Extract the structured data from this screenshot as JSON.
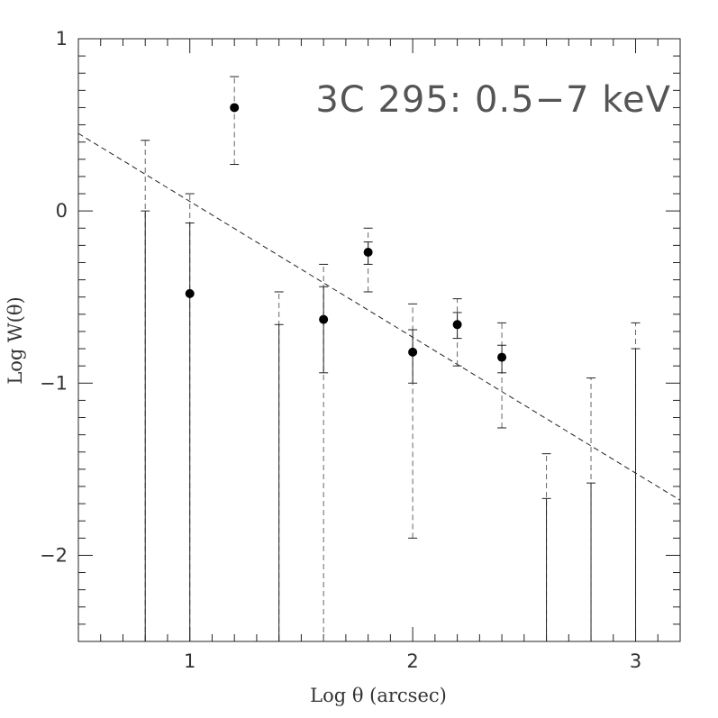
{
  "chart_data": {
    "type": "scatter",
    "annotation": "3C 295: 0.5−7 keV",
    "xlabel": "Log θ (arcsec)",
    "ylabel": "Log W(θ)",
    "xlim": [
      0.5,
      3.2
    ],
    "ylim": [
      -2.5,
      1.0
    ],
    "xticks": [
      1,
      2,
      3
    ],
    "xtick_labels": [
      "1",
      "2",
      "3"
    ],
    "yticks": [
      -2,
      -1,
      0,
      1
    ],
    "ytick_labels": [
      "−2",
      "−1",
      "0",
      "1"
    ],
    "fit_line": {
      "x": [
        0.5,
        3.2
      ],
      "y": [
        0.45,
        -1.68
      ]
    },
    "points": [
      {
        "x": 1.0,
        "y": -0.48,
        "solid_err": [
          -2.5,
          -0.07
        ],
        "dashed_err": [
          null,
          0.1
        ]
      },
      {
        "x": 1.2,
        "y": 0.6,
        "solid_err": null,
        "dashed_err": [
          0.27,
          0.78
        ]
      },
      {
        "x": 1.6,
        "y": -0.63,
        "solid_err": [
          -0.94,
          -0.44
        ],
        "dashed_err": [
          -2.5,
          -0.31
        ]
      },
      {
        "x": 1.8,
        "y": -0.24,
        "solid_err": [
          -0.31,
          -0.18
        ],
        "dashed_err": [
          -0.47,
          -0.1
        ]
      },
      {
        "x": 2.0,
        "y": -0.82,
        "solid_err": [
          -1.0,
          -0.69
        ],
        "dashed_err": [
          -1.9,
          -0.54
        ]
      },
      {
        "x": 2.2,
        "y": -0.66,
        "solid_err": [
          -0.74,
          -0.59
        ],
        "dashed_err": [
          -0.9,
          -0.51
        ]
      },
      {
        "x": 2.4,
        "y": -0.85,
        "solid_err": [
          -0.94,
          -0.78
        ],
        "dashed_err": [
          -1.26,
          -0.65
        ]
      }
    ],
    "upper_limits": [
      {
        "x": 0.8,
        "solid_top": 0.0,
        "dashed_top": 0.41
      },
      {
        "x": 1.4,
        "solid_top": -0.66,
        "dashed_top": -0.47
      },
      {
        "x": 2.6,
        "solid_top": -1.67,
        "dashed_top": -1.41
      },
      {
        "x": 2.8,
        "solid_top": -1.58,
        "dashed_top": -0.97
      },
      {
        "x": 3.0,
        "solid_top": -0.8,
        "dashed_top": -0.65
      }
    ]
  }
}
